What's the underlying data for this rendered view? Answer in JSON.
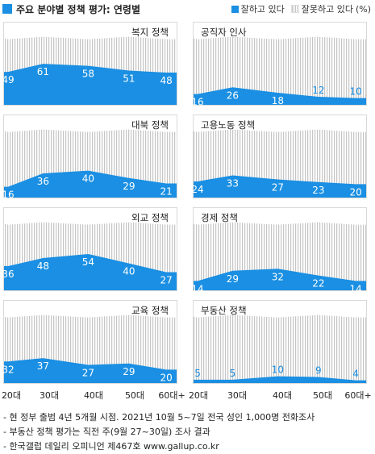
{
  "header": {
    "title": "주요 분야별 정책 평가: 연령별",
    "legend_good": "잘하고 있다",
    "legend_bad": "잘못하고 있다",
    "legend_unit": "(%)"
  },
  "colors": {
    "good": "#1a8fe3",
    "bad_hatch": "#c5c5c5",
    "frame": "#d9d9d9"
  },
  "x_categories": [
    "20대",
    "30대",
    "40대",
    "50대",
    "60대+"
  ],
  "chart_data": [
    {
      "type": "area",
      "title": "복지 정책",
      "categories": [
        "20대",
        "30대",
        "40대",
        "50대",
        "60대+"
      ],
      "series": [
        {
          "name": "잘하고 있다",
          "values": [
            49,
            61,
            58,
            51,
            48
          ]
        }
      ],
      "ylim": [
        0,
        100
      ]
    },
    {
      "type": "area",
      "title": "공직자 인사",
      "categories": [
        "20대",
        "30대",
        "40대",
        "50대",
        "60대+"
      ],
      "series": [
        {
          "name": "잘하고 있다",
          "values": [
            16,
            26,
            18,
            12,
            10
          ]
        }
      ],
      "ylim": [
        0,
        100
      ]
    },
    {
      "type": "area",
      "title": "대북 정책",
      "categories": [
        "20대",
        "30대",
        "40대",
        "50대",
        "60대+"
      ],
      "series": [
        {
          "name": "잘하고 있다",
          "values": [
            16,
            36,
            40,
            29,
            21
          ]
        }
      ],
      "ylim": [
        0,
        100
      ]
    },
    {
      "type": "area",
      "title": "고용노동 정책",
      "categories": [
        "20대",
        "30대",
        "40대",
        "50대",
        "60대+"
      ],
      "series": [
        {
          "name": "잘하고 있다",
          "values": [
            24,
            33,
            27,
            23,
            20
          ]
        }
      ],
      "ylim": [
        0,
        100
      ]
    },
    {
      "type": "area",
      "title": "외교 정책",
      "categories": [
        "20대",
        "30대",
        "40대",
        "50대",
        "60대+"
      ],
      "series": [
        {
          "name": "잘하고 있다",
          "values": [
            36,
            48,
            54,
            40,
            27
          ]
        }
      ],
      "ylim": [
        0,
        100
      ]
    },
    {
      "type": "area",
      "title": "경제 정책",
      "categories": [
        "20대",
        "30대",
        "40대",
        "50대",
        "60대+"
      ],
      "series": [
        {
          "name": "잘하고 있다",
          "values": [
            14,
            29,
            32,
            22,
            14
          ]
        }
      ],
      "ylim": [
        0,
        100
      ]
    },
    {
      "type": "area",
      "title": "교육 정책",
      "categories": [
        "20대",
        "30대",
        "40대",
        "50대",
        "60대+"
      ],
      "series": [
        {
          "name": "잘하고 있다",
          "values": [
            32,
            37,
            27,
            29,
            20
          ]
        }
      ],
      "ylim": [
        0,
        100
      ]
    },
    {
      "type": "area",
      "title": "부동산 정책",
      "categories": [
        "20대",
        "30대",
        "40대",
        "50대",
        "60대+"
      ],
      "series": [
        {
          "name": "잘하고 있다",
          "values": [
            5,
            5,
            10,
            9,
            4
          ]
        }
      ],
      "ylim": [
        0,
        100
      ]
    }
  ],
  "notes": [
    "- 현 정부 출범 4년 5개월 시점. 2021년 10월 5~7일 전국 성인 1,000명 전화조사",
    "- 부동산 정책 평가는 직전 주(9월 27~30일) 조사 결과",
    "- 한국갤럽 데일리 오피니언 제467호 www.gallup.co.kr"
  ]
}
